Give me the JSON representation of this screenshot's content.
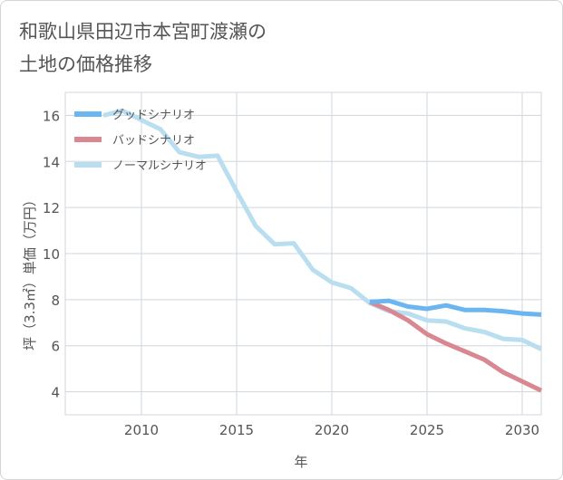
{
  "title": {
    "line1": "和歌山県田辺市本宮町渡瀬の",
    "line2": "土地の価格推移"
  },
  "chart_data": {
    "type": "line",
    "xlabel": "年",
    "ylabel": "坪（3.3㎡）単価（万円）",
    "xlim": [
      2006,
      2031
    ],
    "ylim": [
      3,
      17
    ],
    "x_ticks": [
      2010,
      2015,
      2020,
      2025,
      2030
    ],
    "y_ticks": [
      4,
      6,
      8,
      10,
      12,
      14,
      16
    ],
    "grid": true,
    "legend_position": "top-left",
    "series": [
      {
        "name": "グッドシナリオ",
        "color": "#6bb6f0",
        "x": [
          2022,
          2023,
          2024,
          2025,
          2026,
          2027,
          2028,
          2029,
          2030,
          2031
        ],
        "values": [
          7.9,
          7.95,
          7.7,
          7.6,
          7.75,
          7.55,
          7.55,
          7.5,
          7.4,
          7.35
        ]
      },
      {
        "name": "バッドシナリオ",
        "color": "#d98790",
        "x": [
          2022,
          2023,
          2024,
          2025,
          2026,
          2027,
          2028,
          2029,
          2030,
          2031
        ],
        "values": [
          7.9,
          7.55,
          7.1,
          6.5,
          6.1,
          5.75,
          5.4,
          4.85,
          4.45,
          4.05
        ]
      },
      {
        "name": "ノーマルシナリオ",
        "color": "#b9def0",
        "x": [
          2008,
          2009,
          2010,
          2011,
          2012,
          2013,
          2014,
          2015,
          2016,
          2017,
          2018,
          2019,
          2020,
          2021,
          2022,
          2023,
          2024,
          2025,
          2026,
          2027,
          2028,
          2029,
          2030,
          2031
        ],
        "values": [
          16.0,
          16.2,
          15.8,
          15.4,
          14.4,
          14.2,
          14.25,
          12.7,
          11.2,
          10.4,
          10.45,
          9.3,
          8.75,
          8.5,
          7.85,
          7.5,
          7.4,
          7.1,
          7.05,
          6.75,
          6.6,
          6.3,
          6.25,
          5.85
        ]
      }
    ]
  }
}
